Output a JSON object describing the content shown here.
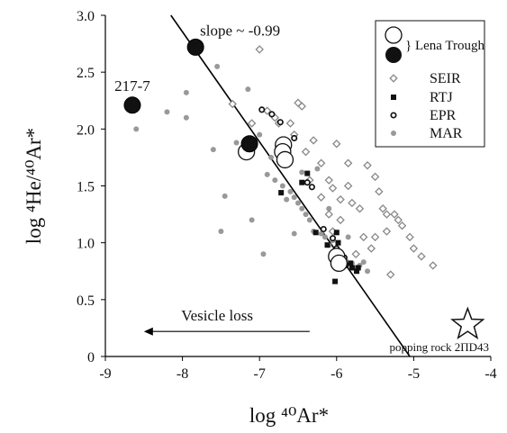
{
  "chart_data": {
    "type": "scatter",
    "xlabel": "log ⁴⁰Ar*",
    "ylabel": "log ⁴He/⁴⁰Ar*",
    "xlim": [
      -9,
      -4
    ],
    "ylim": [
      0,
      3.0
    ],
    "x_ticks": [
      -9,
      -8,
      -7,
      -6,
      -5,
      -4
    ],
    "x_tick_labels": [
      "-9",
      "-8",
      "-7",
      "-6",
      "-5",
      "-4"
    ],
    "y_ticks": [
      0,
      0.5,
      1.0,
      1.5,
      2.0,
      2.5,
      3.0
    ],
    "y_tick_labels": [
      "0",
      "0.5",
      "1.0",
      "1.5",
      "2.0",
      "2.5",
      "3.0"
    ],
    "grid": false,
    "legend_position": "top-right",
    "legend": {
      "lena_label": "} Lena Trough",
      "seir": "SEIR",
      "rtj": "RTJ",
      "epr": "EPR",
      "mar": "MAR"
    },
    "annotations": {
      "slope_label": "slope ~ -0.99",
      "sample_label": "217-7",
      "vesicle_label": "Vesicle loss",
      "popping_label": "popping rock 2ΠD43"
    },
    "trend_line": {
      "x": [
        -8.15,
        -5.05
      ],
      "y": [
        3.0,
        0.0
      ]
    },
    "popping_rock_point": {
      "x": -4.3,
      "y": 0.28
    },
    "arrow": {
      "x_from": -6.35,
      "x_to": -8.5,
      "y": 0.22
    },
    "series": [
      {
        "name": "Lena Trough (filled)",
        "marker": "filled-circle",
        "x": [
          -7.83,
          -8.65,
          -7.13
        ],
        "y": [
          2.72,
          2.21,
          1.87
        ]
      },
      {
        "name": "Lena Trough (open)",
        "marker": "open-circle",
        "x": [
          -7.17,
          -6.69,
          -6.7,
          -6.67,
          -6.0,
          -5.97
        ],
        "y": [
          1.8,
          1.86,
          1.8,
          1.73,
          0.88,
          0.82
        ]
      },
      {
        "name": "SEIR",
        "marker": "diamond",
        "x": [
          -7.0,
          -7.35,
          -7.1,
          -6.9,
          -6.75,
          -6.6,
          -6.45,
          -6.5,
          -6.3,
          -6.4,
          -6.2,
          -6.1,
          -6.0,
          -5.85,
          -6.05,
          -5.95,
          -5.8,
          -5.7,
          -5.6,
          -5.5,
          -5.45,
          -5.4,
          -5.35,
          -5.2,
          -5.15,
          -5.05,
          -5.0,
          -4.75,
          -4.9,
          -5.3,
          -5.55,
          -5.65,
          -5.75,
          -5.9,
          -6.1,
          -6.2,
          -6.35,
          -6.55,
          -6.7,
          -6.8,
          -5.25,
          -5.35,
          -5.5,
          -5.95,
          -6.05,
          -5.85
        ],
        "y": [
          2.7,
          2.22,
          2.05,
          2.16,
          2.05,
          2.05,
          2.2,
          2.23,
          1.9,
          1.8,
          1.7,
          1.55,
          1.87,
          1.7,
          1.48,
          1.38,
          1.35,
          1.3,
          1.68,
          1.58,
          1.45,
          1.3,
          1.25,
          1.2,
          1.15,
          1.05,
          0.95,
          0.8,
          0.88,
          0.72,
          0.95,
          1.05,
          0.9,
          0.85,
          1.25,
          1.4,
          1.55,
          1.95,
          1.85,
          2.1,
          1.25,
          1.1,
          1.05,
          1.2,
          1.1,
          1.5
        ]
      },
      {
        "name": "RTJ",
        "marker": "square",
        "x": [
          -6.38,
          -6.45,
          -6.72,
          -6.27,
          -6.0,
          -6.12,
          -5.98,
          -5.88,
          -5.82,
          -5.8,
          -5.74,
          -5.72,
          -6.02
        ],
        "y": [
          1.61,
          1.53,
          1.44,
          1.09,
          1.09,
          0.98,
          1.0,
          0.8,
          0.82,
          0.78,
          0.75,
          0.78,
          0.66
        ]
      },
      {
        "name": "EPR",
        "marker": "ring",
        "x": [
          -6.97,
          -6.84,
          -6.73,
          -6.55,
          -6.38,
          -6.32,
          -6.17,
          -6.0,
          -5.9,
          -6.05
        ],
        "y": [
          2.17,
          2.13,
          2.06,
          1.92,
          1.53,
          1.49,
          1.12,
          0.95,
          0.87,
          1.04
        ]
      },
      {
        "name": "MAR",
        "marker": "dot",
        "x": [
          -8.6,
          -8.2,
          -7.95,
          -7.55,
          -7.95,
          -7.6,
          -7.45,
          -7.3,
          -7.15,
          -7.0,
          -6.9,
          -6.8,
          -6.7,
          -6.6,
          -6.55,
          -6.5,
          -6.45,
          -6.4,
          -6.35,
          -6.3,
          -6.2,
          -6.15,
          -6.1,
          -6.05,
          -6.0,
          -5.95,
          -5.9,
          -5.8,
          -5.75,
          -5.7,
          -5.65,
          -5.6,
          -6.95,
          -6.55,
          -6.45,
          -7.5,
          -7.1,
          -6.85,
          -6.25,
          -6.65,
          -5.85,
          -6.1
        ],
        "y": [
          2.0,
          2.15,
          2.1,
          2.55,
          2.32,
          1.82,
          1.41,
          1.88,
          2.35,
          1.95,
          1.6,
          1.55,
          1.5,
          1.45,
          1.4,
          1.35,
          1.3,
          1.25,
          1.2,
          1.1,
          1.08,
          1.05,
          0.98,
          1.02,
          0.95,
          0.92,
          0.85,
          0.82,
          0.78,
          0.8,
          0.83,
          0.75,
          0.9,
          1.08,
          1.62,
          1.1,
          1.2,
          1.75,
          1.65,
          1.38,
          1.05,
          1.3
        ]
      }
    ]
  }
}
